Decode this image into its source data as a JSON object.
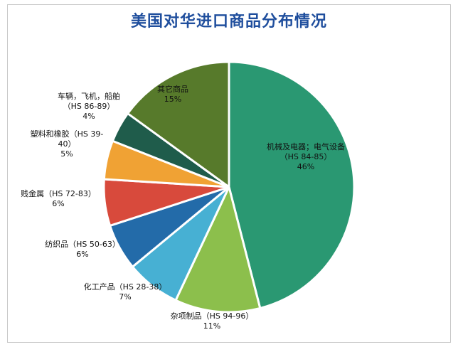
{
  "chart_data": {
    "type": "pie",
    "title": "美国对华进口商品分布情况",
    "slices": [
      {
        "label_lines": [
          "机械及电器；电气设备",
          "（HS 84-85）"
        ],
        "pct_label": "46%",
        "value": 46,
        "color": "#2a9872"
      },
      {
        "label_lines": [
          "杂项制品（HS 94-96）"
        ],
        "pct_label": "11%",
        "value": 11,
        "color": "#8cbf4c"
      },
      {
        "label_lines": [
          "化工产品（HS 28-38）"
        ],
        "pct_label": "7%",
        "value": 7,
        "color": "#47b0d3"
      },
      {
        "label_lines": [
          "纺织品（HS 50-63）"
        ],
        "pct_label": "6%",
        "value": 6,
        "color": "#236ba9"
      },
      {
        "label_lines": [
          "贱金属（HS 72-83）"
        ],
        "pct_label": "6%",
        "value": 6,
        "color": "#d84a3c"
      },
      {
        "label_lines": [
          "塑料和橡胶（HS 39-",
          "40）"
        ],
        "pct_label": "5%",
        "value": 5,
        "color": "#f0a234"
      },
      {
        "label_lines": [
          "车辆，飞机，船舶",
          "（HS 86-89）"
        ],
        "pct_label": "4%",
        "value": 4,
        "color": "#1f5c4b"
      },
      {
        "label_lines": [
          "其它商品"
        ],
        "pct_label": "15%",
        "value": 15,
        "color": "#577a2b"
      }
    ]
  }
}
